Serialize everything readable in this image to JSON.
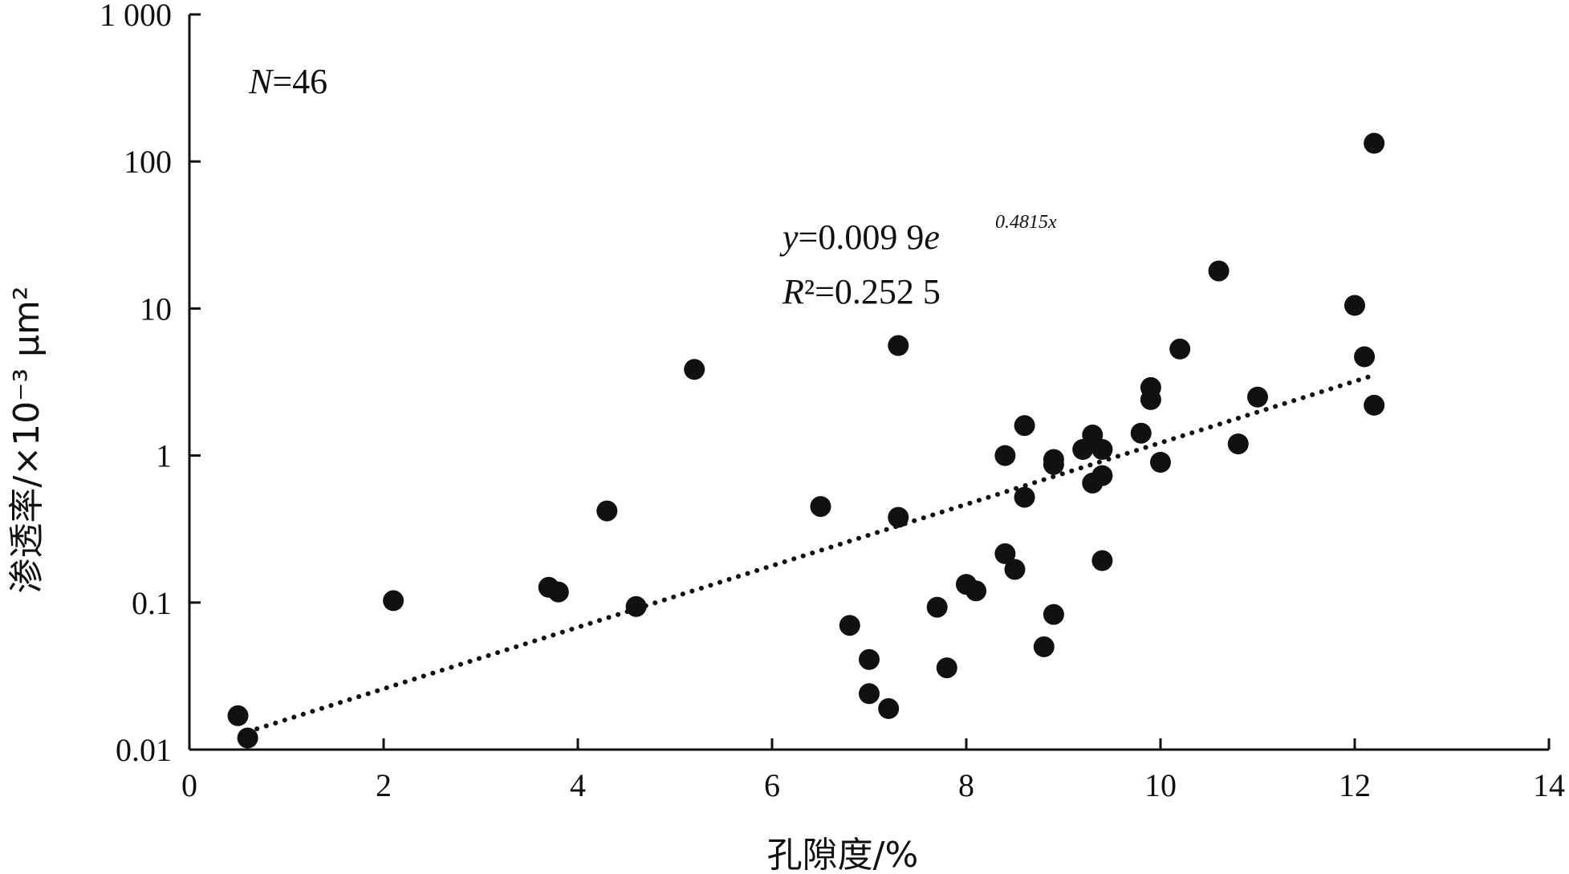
{
  "chart_data": {
    "type": "scatter",
    "xlabel": "孔隙度/%",
    "ylabel": "渗透率/×10⁻³ μm²",
    "xlim": [
      0,
      14
    ],
    "ylim": [
      0.01,
      1000
    ],
    "yscale": "log",
    "x_ticks": [
      0,
      2,
      4,
      6,
      8,
      10,
      12,
      14
    ],
    "x_tick_labels": [
      "0",
      "2",
      "4",
      "6",
      "8",
      "10",
      "12",
      "14"
    ],
    "y_ticks": [
      0.01,
      0.1,
      1,
      10,
      100,
      1000
    ],
    "y_tick_labels": [
      "0.01",
      "0.1",
      "1",
      "10",
      "100",
      "1 000"
    ],
    "grid": false,
    "annotations": {
      "n_label": "N=46",
      "equation_main": "y=0.009 9e",
      "equation_exponent": "0.4815x",
      "r2": "R²=0.252 5"
    },
    "trendline": {
      "style": "dotted",
      "a": 0.0099,
      "b": 0.4815,
      "x_range": [
        0.6,
        12.2
      ]
    },
    "points": [
      {
        "x": 0.5,
        "y": 0.017
      },
      {
        "x": 0.6,
        "y": 0.012
      },
      {
        "x": 2.1,
        "y": 0.103
      },
      {
        "x": 3.7,
        "y": 0.127
      },
      {
        "x": 3.8,
        "y": 0.118
      },
      {
        "x": 4.3,
        "y": 0.42
      },
      {
        "x": 4.6,
        "y": 0.094
      },
      {
        "x": 5.2,
        "y": 3.85
      },
      {
        "x": 6.5,
        "y": 0.45
      },
      {
        "x": 6.8,
        "y": 0.07
      },
      {
        "x": 7.0,
        "y": 0.041
      },
      {
        "x": 7.0,
        "y": 0.024
      },
      {
        "x": 7.2,
        "y": 0.019
      },
      {
        "x": 7.3,
        "y": 5.6
      },
      {
        "x": 7.3,
        "y": 0.38
      },
      {
        "x": 7.7,
        "y": 0.093
      },
      {
        "x": 7.8,
        "y": 0.036
      },
      {
        "x": 8.0,
        "y": 0.133
      },
      {
        "x": 8.1,
        "y": 0.12
      },
      {
        "x": 8.4,
        "y": 1.0
      },
      {
        "x": 8.4,
        "y": 0.215
      },
      {
        "x": 8.5,
        "y": 0.168
      },
      {
        "x": 8.6,
        "y": 1.6
      },
      {
        "x": 8.6,
        "y": 0.52
      },
      {
        "x": 8.8,
        "y": 0.05
      },
      {
        "x": 8.9,
        "y": 0.94
      },
      {
        "x": 8.9,
        "y": 0.87
      },
      {
        "x": 8.9,
        "y": 0.083
      },
      {
        "x": 9.2,
        "y": 1.1
      },
      {
        "x": 9.3,
        "y": 1.38
      },
      {
        "x": 9.3,
        "y": 0.65
      },
      {
        "x": 9.4,
        "y": 1.1
      },
      {
        "x": 9.4,
        "y": 0.73
      },
      {
        "x": 9.4,
        "y": 0.193
      },
      {
        "x": 9.8,
        "y": 1.42
      },
      {
        "x": 9.9,
        "y": 2.9
      },
      {
        "x": 9.9,
        "y": 2.4
      },
      {
        "x": 10.0,
        "y": 0.9
      },
      {
        "x": 10.2,
        "y": 5.3
      },
      {
        "x": 10.6,
        "y": 18.0
      },
      {
        "x": 10.8,
        "y": 1.2
      },
      {
        "x": 11.0,
        "y": 2.5
      },
      {
        "x": 12.0,
        "y": 10.5
      },
      {
        "x": 12.1,
        "y": 4.7
      },
      {
        "x": 12.2,
        "y": 133.0
      },
      {
        "x": 12.2,
        "y": 2.2
      }
    ]
  }
}
